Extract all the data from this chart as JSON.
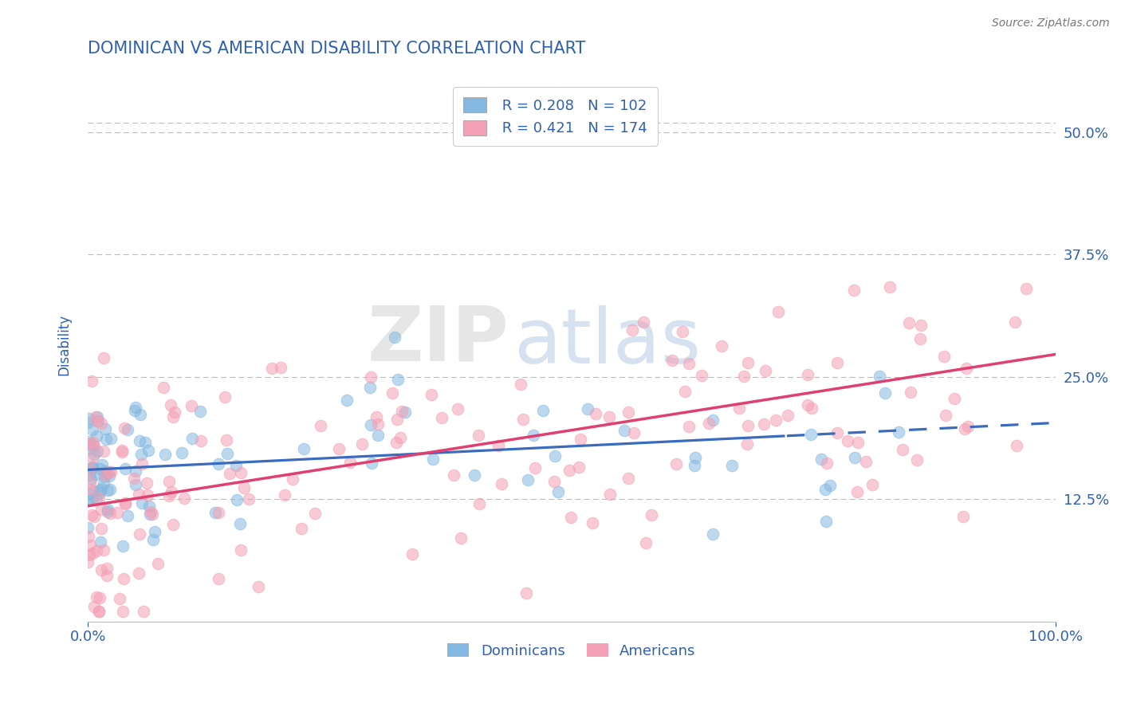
{
  "title": "DOMINICAN VS AMERICAN DISABILITY CORRELATION CHART",
  "source_text": "Source: ZipAtlas.com",
  "ylabel": "Disability",
  "xlim": [
    0.0,
    1.0
  ],
  "ylim": [
    0.0,
    0.565
  ],
  "yticks": [
    0.0,
    0.125,
    0.25,
    0.375,
    0.5
  ],
  "ytick_labels": [
    "",
    "12.5%",
    "25.0%",
    "37.5%",
    "50.0%"
  ],
  "xtick_labels": [
    "0.0%",
    "100.0%"
  ],
  "legend_r1": "R = 0.208",
  "legend_n1": "N = 102",
  "legend_r2": "R = 0.421",
  "legend_n2": "N = 174",
  "blue_color": "#85b8e0",
  "pink_color": "#f4a0b5",
  "blue_line_color": "#3b6bbf",
  "pink_line_color": "#e04070",
  "title_color": "#3060b0",
  "axis_label_color": "#3060b0",
  "tick_label_color": "#3060b0",
  "source_color": "#777777",
  "background_color": "#ffffff",
  "grid_color": "#bbbbbb",
  "watermark_gray": "#c8c8c8",
  "watermark_blue": "#a8c0e0",
  "blue_intercept": 0.155,
  "blue_slope": 0.048,
  "pink_intercept": 0.118,
  "pink_slope": 0.155,
  "blue_noise": 0.042,
  "pink_noise": 0.065,
  "dashed_split": 0.72
}
